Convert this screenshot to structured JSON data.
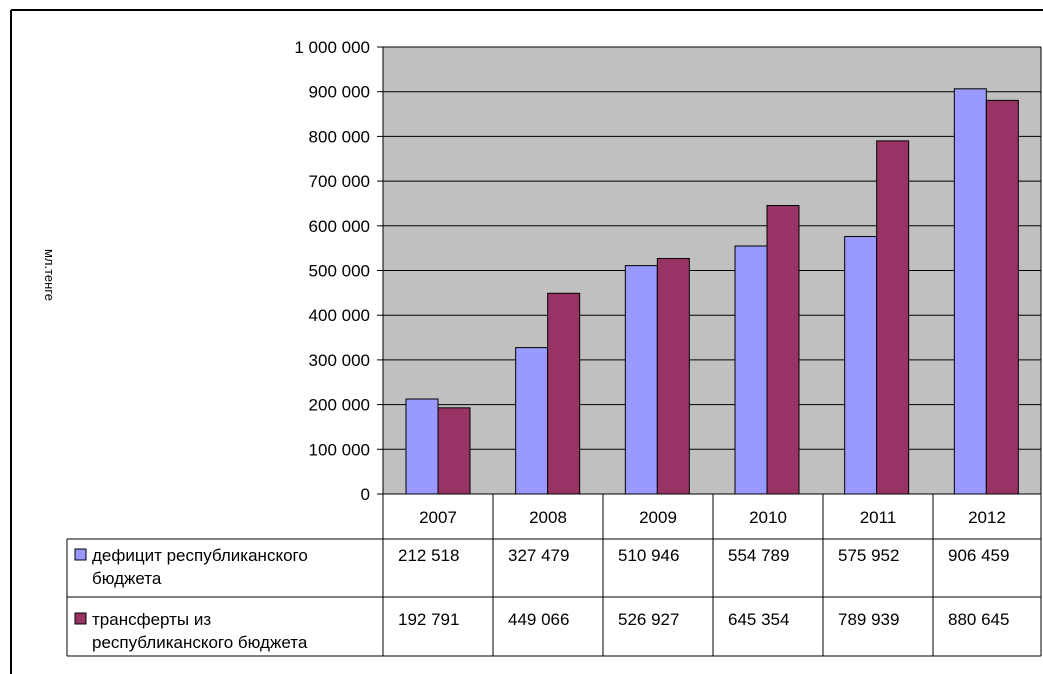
{
  "chart_data": {
    "type": "bar",
    "ylabel": "мл.тенге",
    "ylim": [
      0,
      1000000
    ],
    "yticks": [
      0,
      100000,
      200000,
      300000,
      400000,
      500000,
      600000,
      700000,
      800000,
      900000,
      1000000
    ],
    "ytick_labels": [
      "0",
      "100 000",
      "200 000",
      "300 000",
      "400 000",
      "500 000",
      "600 000",
      "700 000",
      "800 000",
      "900 000",
      "1 000 000"
    ],
    "categories": [
      "2007",
      "2008",
      "2009",
      "2010",
      "2011",
      "2012"
    ],
    "grid": true,
    "legend": "data-table",
    "series": [
      {
        "name_lines": [
          "дефицит республиканского",
          "бюджета"
        ],
        "color": "#9999FF",
        "values": [
          212518,
          327479,
          510946,
          554789,
          575952,
          906459
        ],
        "labels": [
          "212 518",
          "327 479",
          "510 946",
          "554 789",
          "575 952",
          "906 459"
        ]
      },
      {
        "name_lines": [
          "трансферты из",
          "республиканского бюджета"
        ],
        "color": "#993366",
        "values": [
          192791,
          449066,
          526927,
          645354,
          789939,
          880645
        ],
        "labels": [
          "192 791",
          "449 066",
          "526 927",
          "645 354",
          "789 939",
          "880 645"
        ]
      }
    ],
    "plot_background": "#C0C0C0"
  }
}
